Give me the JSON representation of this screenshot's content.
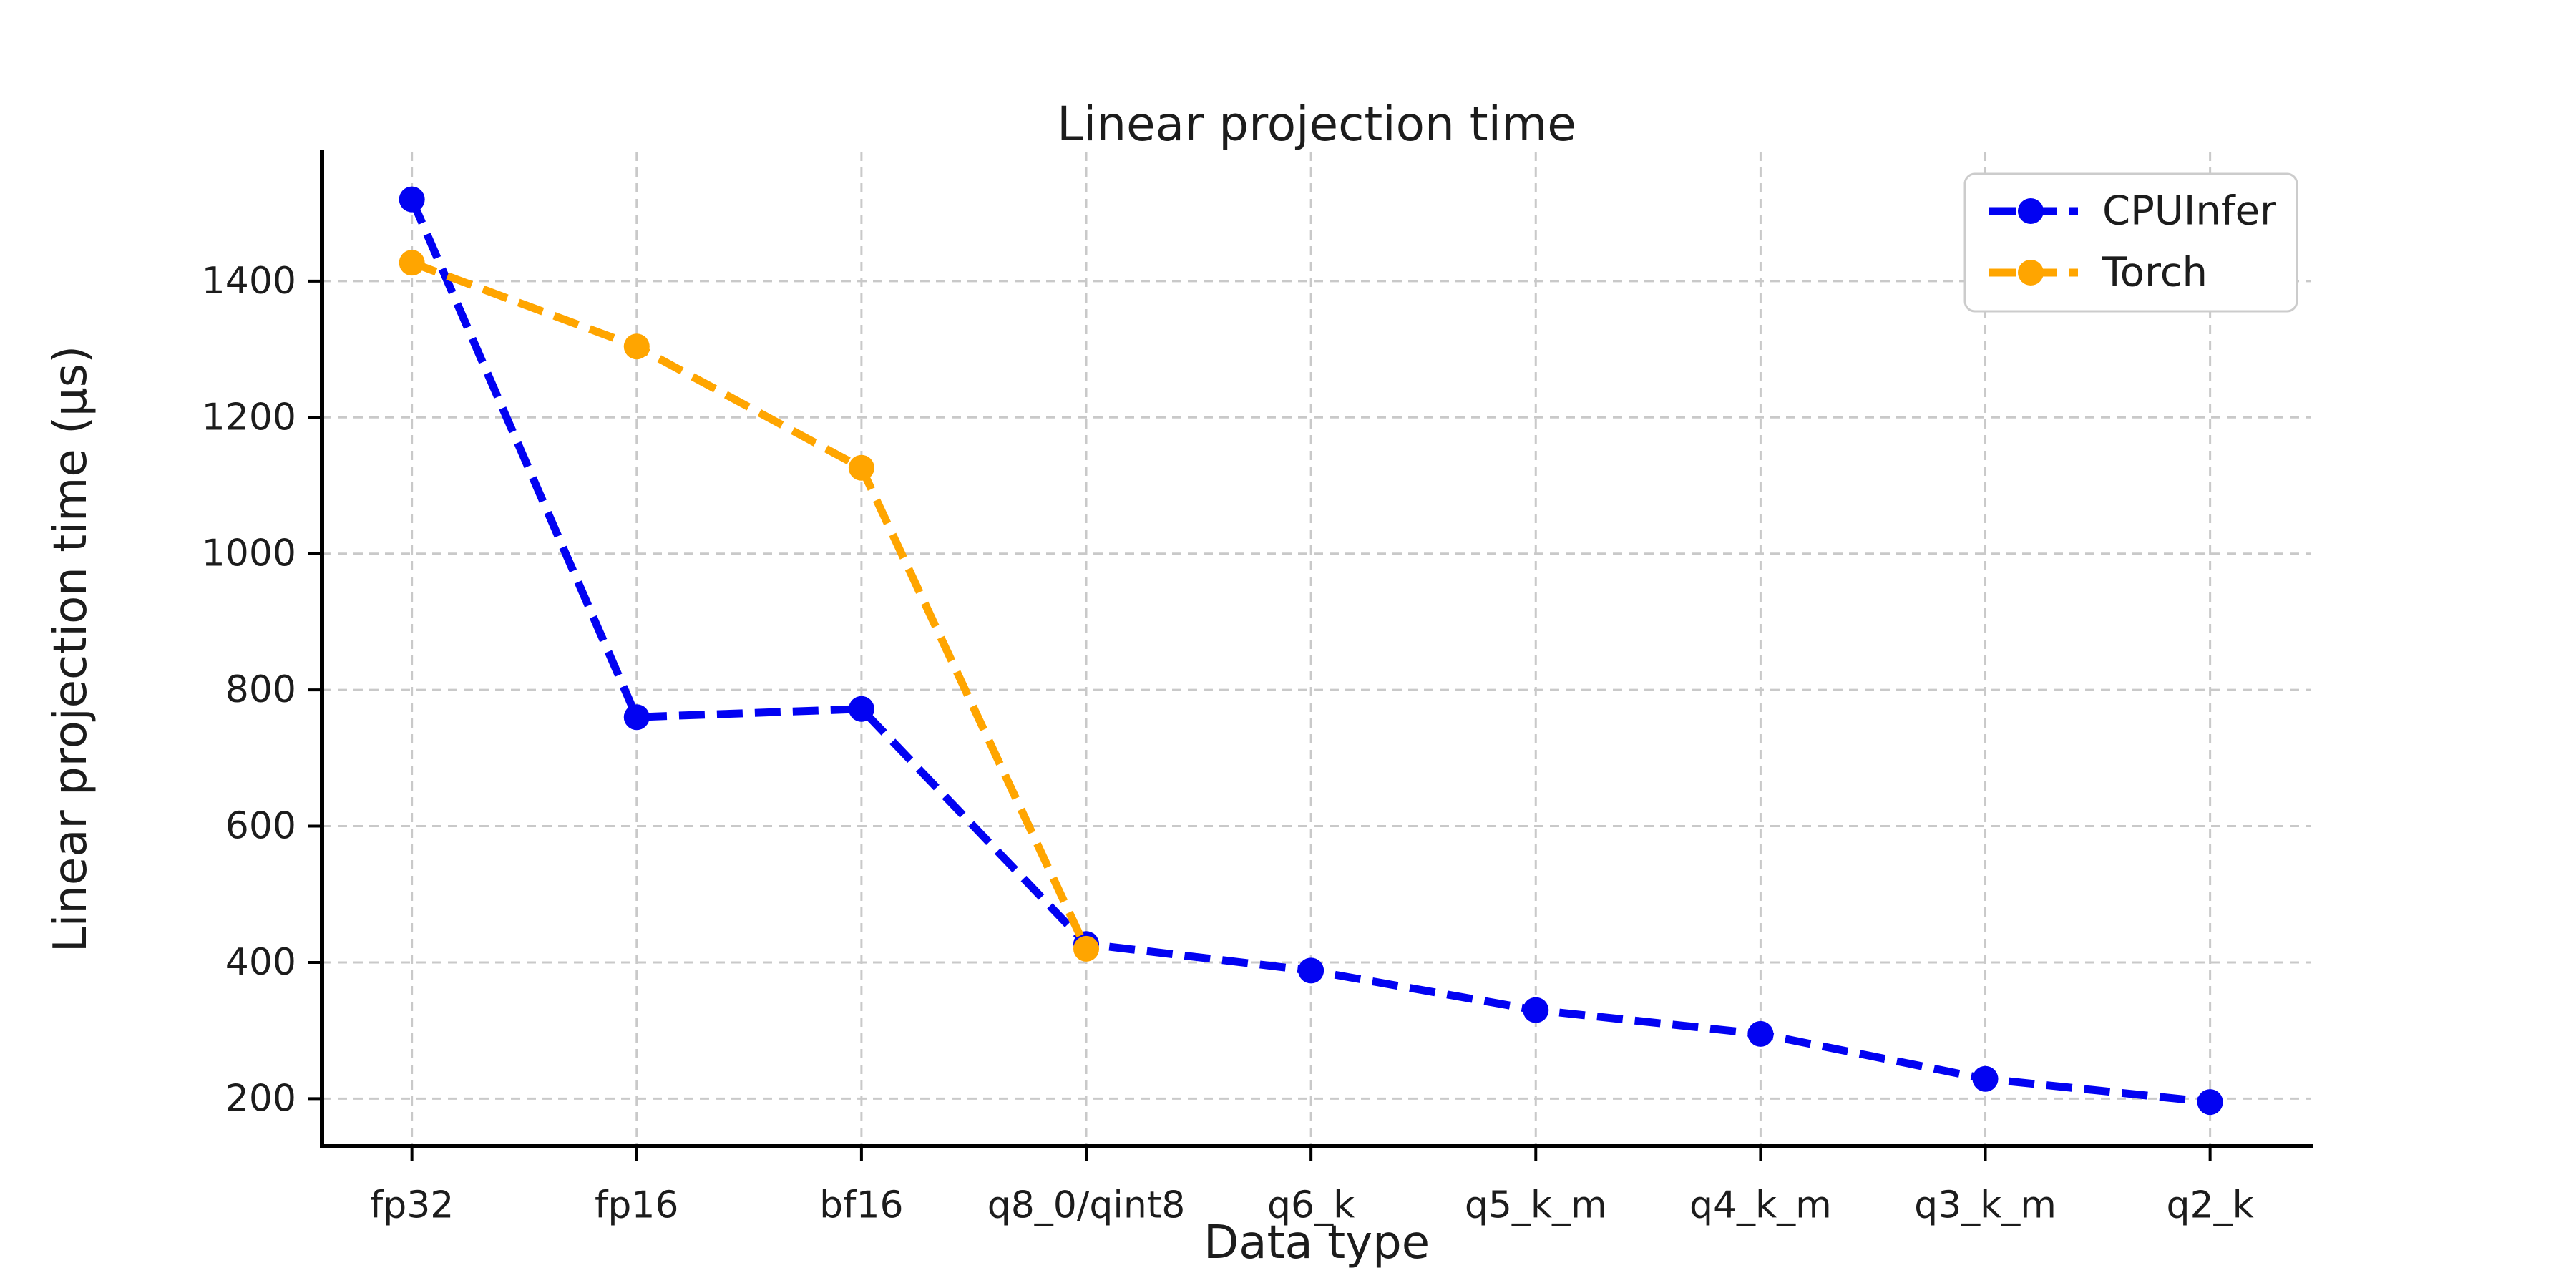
{
  "chart_data": {
    "type": "line",
    "title": "Linear projection time",
    "xlabel": "Data type",
    "ylabel": "Linear projection time (µs)",
    "categories": [
      "fp32",
      "fp16",
      "bf16",
      "q8_0/qint8",
      "q6_k",
      "q5_k_m",
      "q4_k_m",
      "q3_k_m",
      "q2_k"
    ],
    "series": [
      {
        "name": "CPUInfer",
        "color": "#0202f2",
        "values": [
          1520,
          760,
          772,
          427,
          388,
          330,
          295,
          229,
          195
        ]
      },
      {
        "name": "Torch",
        "color": "#ffa500",
        "values": [
          1427,
          1304,
          1126,
          420,
          null,
          null,
          null,
          null,
          null
        ]
      }
    ],
    "yticks": [
      200,
      400,
      600,
      800,
      1000,
      1200,
      1400
    ],
    "ylim": [
      130,
      1590
    ],
    "grid": "dashed",
    "legend_position": "upper right",
    "line_style": "dashed",
    "marker": "circle"
  },
  "colors": {
    "background": "#ffffff",
    "grid": "#c9c9c9",
    "spine": "#000000",
    "text": "#1c1c1c",
    "legend_border": "#cccccc"
  }
}
